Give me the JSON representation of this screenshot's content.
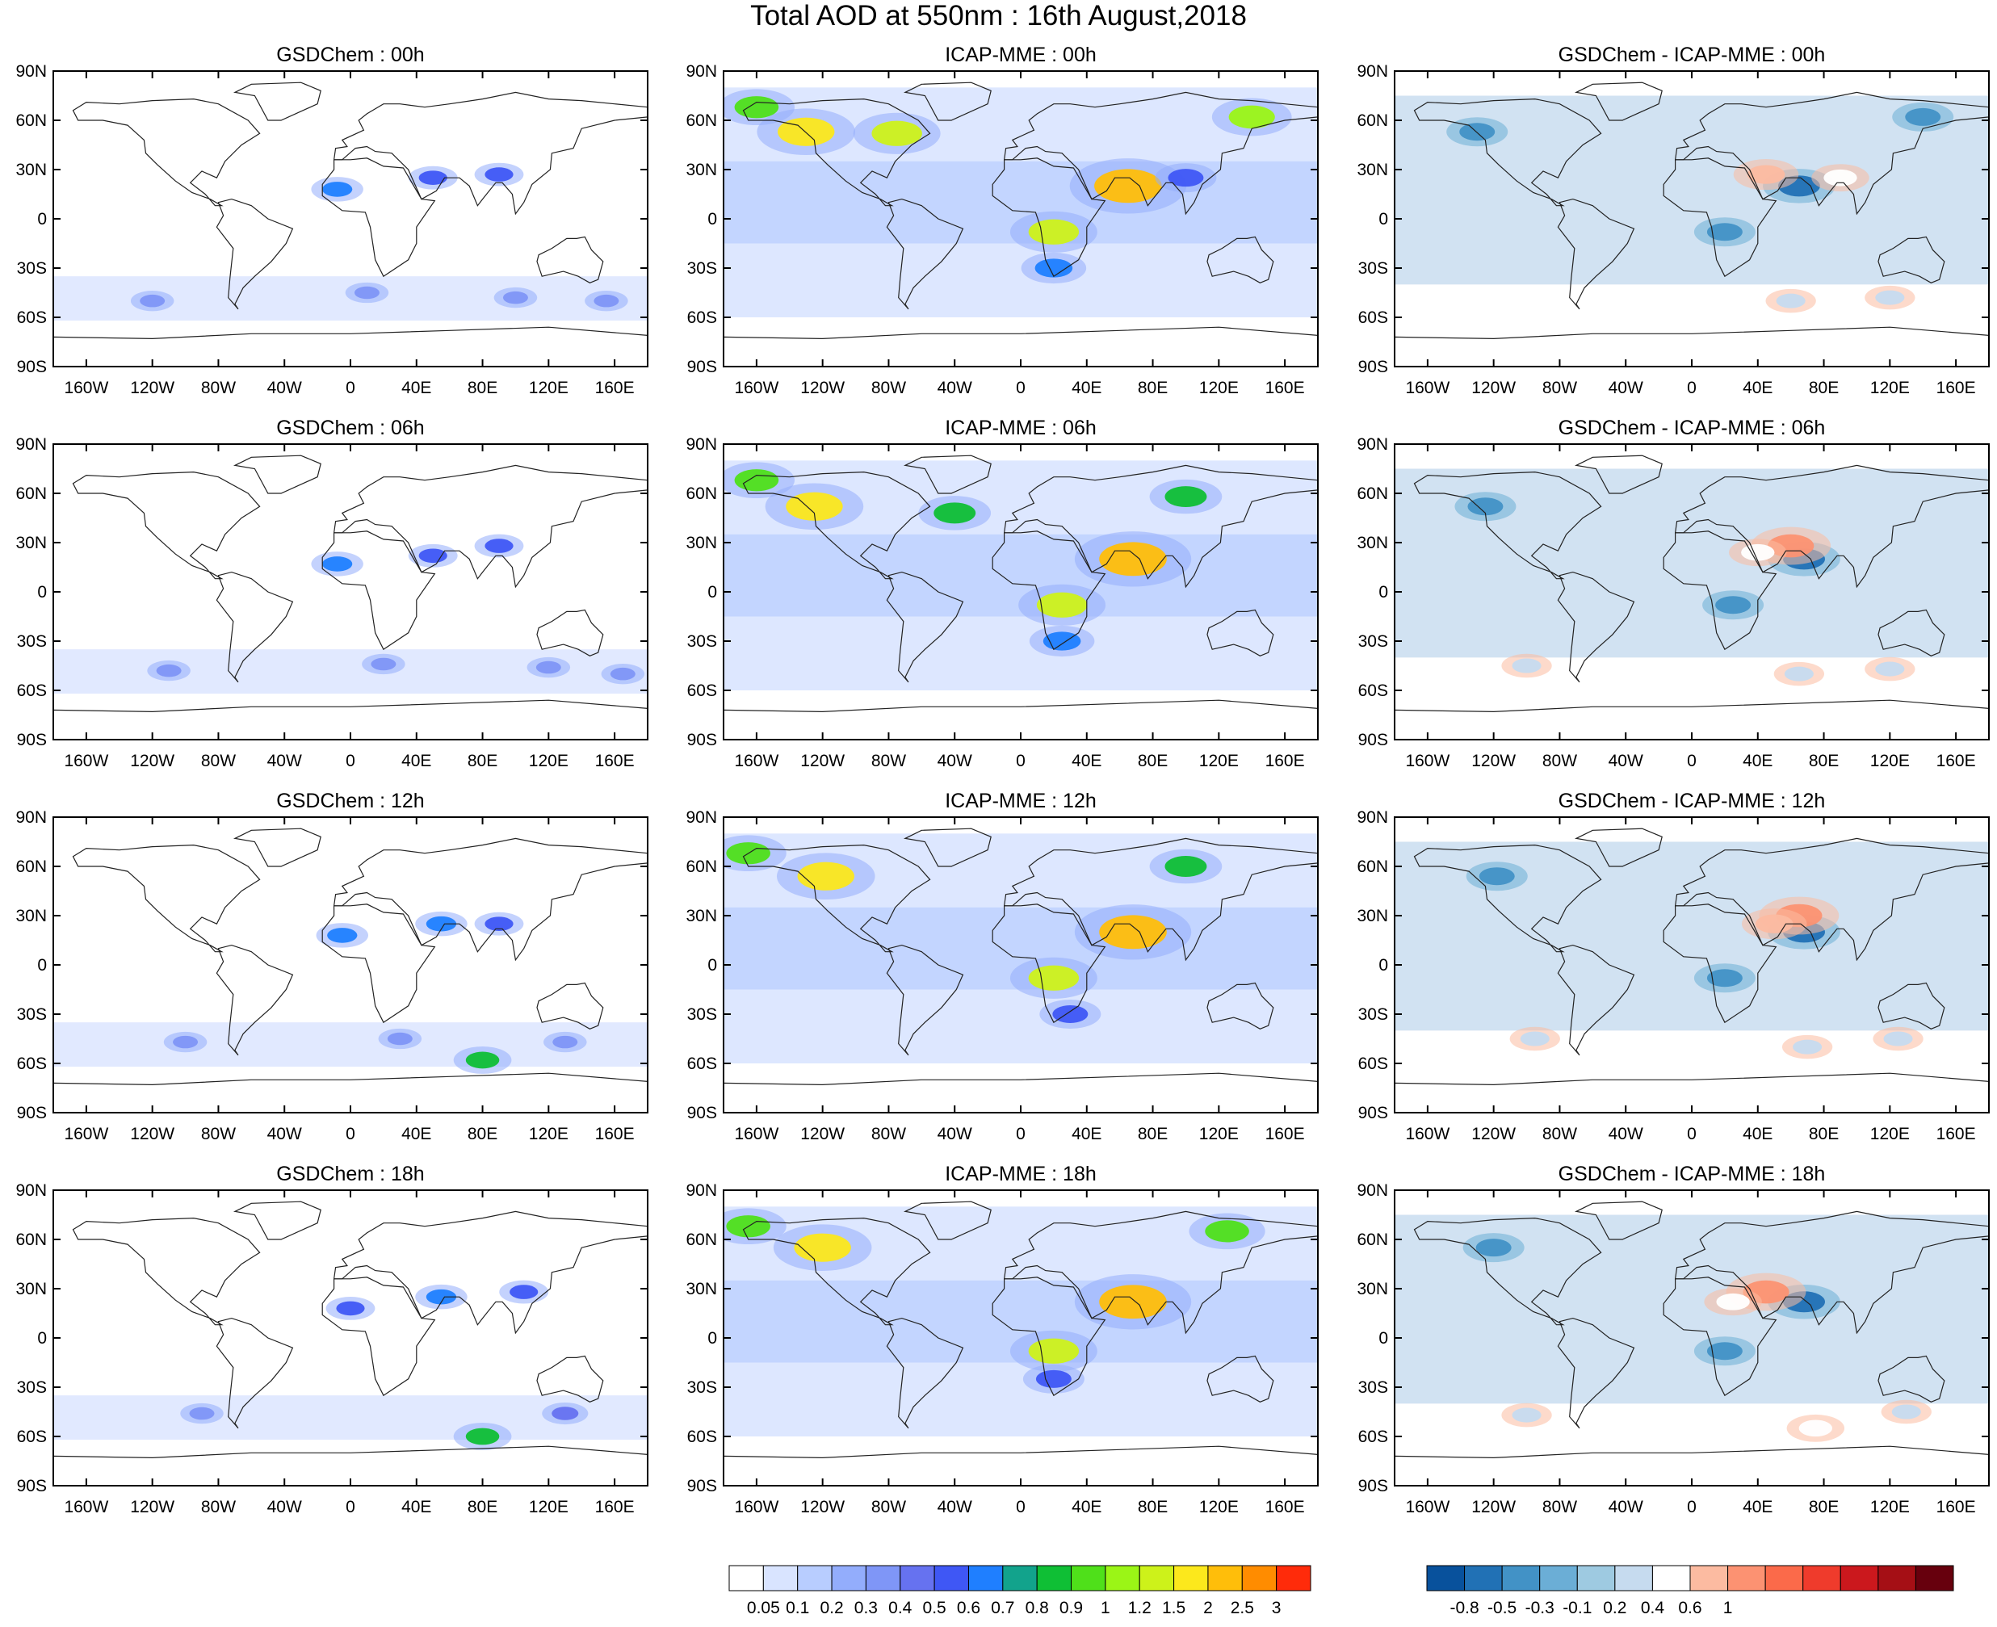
{
  "title": "Total AOD at 550nm : 16th August,2018",
  "lat_ticks": [
    "90N",
    "60N",
    "30N",
    "0",
    "30S",
    "60S",
    "90S"
  ],
  "lon_ticks": [
    "160W",
    "120W",
    "80W",
    "40W",
    "0",
    "40E",
    "80E",
    "120E",
    "160E"
  ],
  "columns": [
    {
      "id": "gsdchem",
      "label": "GSDChem",
      "field": "aod"
    },
    {
      "id": "icap",
      "label": "ICAP-MME",
      "field": "aod"
    },
    {
      "id": "diff",
      "label": "GSDChem - ICAP-MME",
      "field": "diff"
    }
  ],
  "times": [
    "00h",
    "06h",
    "12h",
    "18h"
  ],
  "panels": [
    {
      "title": "GSDChem : 00h"
    },
    {
      "title": "ICAP-MME : 00h"
    },
    {
      "title": "GSDChem - ICAP-MME : 00h"
    },
    {
      "title": "GSDChem : 06h"
    },
    {
      "title": "ICAP-MME : 06h"
    },
    {
      "title": "GSDChem - ICAP-MME : 06h"
    },
    {
      "title": "GSDChem : 12h"
    },
    {
      "title": "ICAP-MME : 12h"
    },
    {
      "title": "GSDChem - ICAP-MME : 12h"
    },
    {
      "title": "GSDChem : 18h"
    },
    {
      "title": "ICAP-MME : 18h"
    },
    {
      "title": "GSDChem - ICAP-MME : 18h"
    }
  ],
  "colorbars": {
    "aod": {
      "labels": [
        "0.05",
        "0.1",
        "0.2",
        "0.3",
        "0.4",
        "0.5",
        "0.6",
        "0.7",
        "0.8",
        "0.9",
        "1",
        "1.2",
        "1.5",
        "2",
        "2.5",
        "3"
      ],
      "colors": [
        "#ffffff",
        "#d9e4ff",
        "#b8cdff",
        "#93adfc",
        "#7f96f7",
        "#6672f0",
        "#3f57f5",
        "#1f7fff",
        "#12a38c",
        "#0fbf35",
        "#4fe01a",
        "#9bf516",
        "#cdf21a",
        "#fce81c",
        "#ffbe0a",
        "#ff8c00",
        "#ff2b0a"
      ]
    },
    "diff": {
      "labels": [
        "-0.8",
        "-0.5",
        "-0.3",
        "-0.1",
        "0.2",
        "0.4",
        "0.6",
        "1"
      ],
      "colors": [
        "#08519c",
        "#2171b5",
        "#4292c6",
        "#6baed6",
        "#9ecae1",
        "#c6dbef",
        "#ffffff",
        "#fcbba1",
        "#fc9272",
        "#fb6a4a",
        "#ef3b2c",
        "#cb181d",
        "#a50f15",
        "#67000d"
      ]
    }
  },
  "chart_data": [
    {
      "type": "heatmap",
      "title": "GSDChem : 00h",
      "field": "AOD",
      "xlim": [
        -180,
        180
      ],
      "ylim": [
        -90,
        90
      ],
      "features": [
        {
          "lon": -8,
          "lat": 18,
          "value": 0.6
        },
        {
          "lon": 50,
          "lat": 25,
          "value": 0.5
        },
        {
          "lon": 90,
          "lat": 27,
          "value": 0.5
        },
        {
          "lon": -120,
          "lat": -50,
          "value": 0.3
        },
        {
          "lon": 10,
          "lat": -45,
          "value": 0.3
        },
        {
          "lon": 100,
          "lat": -48,
          "value": 0.3
        },
        {
          "lon": 155,
          "lat": -50,
          "value": 0.3
        }
      ]
    },
    {
      "type": "heatmap",
      "title": "ICAP-MME : 00h",
      "field": "AOD",
      "xlim": [
        -180,
        180
      ],
      "ylim": [
        -90,
        90
      ],
      "features": [
        {
          "lon": -130,
          "lat": 53,
          "value": 1.5
        },
        {
          "lon": -75,
          "lat": 52,
          "value": 1.2
        },
        {
          "lon": -160,
          "lat": 68,
          "value": 0.9
        },
        {
          "lon": 65,
          "lat": 20,
          "value": 2
        },
        {
          "lon": 20,
          "lat": -8,
          "value": 1.2
        },
        {
          "lon": 140,
          "lat": 62,
          "value": 1
        },
        {
          "lon": 20,
          "lat": -30,
          "value": 0.6
        },
        {
          "lon": 100,
          "lat": 25,
          "value": 0.5
        }
      ]
    },
    {
      "type": "heatmap",
      "title": "GSDChem - ICAP-MME : 00h",
      "field": "difference",
      "xlim": [
        -180,
        180
      ],
      "ylim": [
        -90,
        90
      ],
      "features": [
        {
          "lon": 65,
          "lat": 20,
          "value": -0.8
        },
        {
          "lon": 20,
          "lat": -8,
          "value": -0.5
        },
        {
          "lon": -130,
          "lat": 53,
          "value": -0.5
        },
        {
          "lon": 140,
          "lat": 62,
          "value": -0.5
        },
        {
          "lon": 45,
          "lat": 27,
          "value": 0.6
        },
        {
          "lon": 90,
          "lat": 25,
          "value": 0.4
        },
        {
          "lon": 60,
          "lat": -50,
          "value": 0.2
        },
        {
          "lon": 120,
          "lat": -48,
          "value": 0.2
        }
      ]
    },
    {
      "type": "heatmap",
      "title": "GSDChem : 06h",
      "field": "AOD",
      "xlim": [
        -180,
        180
      ],
      "ylim": [
        -90,
        90
      ],
      "features": [
        {
          "lon": -8,
          "lat": 17,
          "value": 0.6
        },
        {
          "lon": 50,
          "lat": 22,
          "value": 0.5
        },
        {
          "lon": 90,
          "lat": 28,
          "value": 0.5
        },
        {
          "lon": -110,
          "lat": -48,
          "value": 0.3
        },
        {
          "lon": 20,
          "lat": -44,
          "value": 0.3
        },
        {
          "lon": 120,
          "lat": -46,
          "value": 0.3
        },
        {
          "lon": 165,
          "lat": -50,
          "value": 0.3
        }
      ]
    },
    {
      "type": "heatmap",
      "title": "ICAP-MME : 06h",
      "field": "AOD",
      "xlim": [
        -180,
        180
      ],
      "ylim": [
        -90,
        90
      ],
      "features": [
        {
          "lon": -125,
          "lat": 52,
          "value": 1.5
        },
        {
          "lon": -160,
          "lat": 68,
          "value": 0.9
        },
        {
          "lon": -40,
          "lat": 48,
          "value": 0.8
        },
        {
          "lon": 68,
          "lat": 20,
          "value": 2
        },
        {
          "lon": 25,
          "lat": -8,
          "value": 1.2
        },
        {
          "lon": 100,
          "lat": 58,
          "value": 0.8
        },
        {
          "lon": 25,
          "lat": -30,
          "value": 0.6
        }
      ]
    },
    {
      "type": "heatmap",
      "title": "GSDChem - ICAP-MME : 06h",
      "field": "difference",
      "xlim": [
        -180,
        180
      ],
      "ylim": [
        -90,
        90
      ],
      "features": [
        {
          "lon": 68,
          "lat": 20,
          "value": -0.8
        },
        {
          "lon": 25,
          "lat": -8,
          "value": -0.5
        },
        {
          "lon": -125,
          "lat": 52,
          "value": -0.5
        },
        {
          "lon": 60,
          "lat": 28,
          "value": 1
        },
        {
          "lon": 40,
          "lat": 24,
          "value": 0.4
        },
        {
          "lon": 65,
          "lat": -50,
          "value": 0.2
        },
        {
          "lon": 120,
          "lat": -47,
          "value": 0.2
        },
        {
          "lon": -100,
          "lat": -45,
          "value": 0.2
        }
      ]
    },
    {
      "type": "heatmap",
      "title": "GSDChem : 12h",
      "field": "AOD",
      "xlim": [
        -180,
        180
      ],
      "ylim": [
        -90,
        90
      ],
      "features": [
        {
          "lon": -5,
          "lat": 18,
          "value": 0.6
        },
        {
          "lon": 55,
          "lat": 25,
          "value": 0.6
        },
        {
          "lon": 90,
          "lat": 25,
          "value": 0.5
        },
        {
          "lon": -100,
          "lat": -47,
          "value": 0.3
        },
        {
          "lon": 30,
          "lat": -45,
          "value": 0.3
        },
        {
          "lon": 80,
          "lat": -58,
          "value": 0.8
        },
        {
          "lon": 130,
          "lat": -47,
          "value": 0.3
        }
      ]
    },
    {
      "type": "heatmap",
      "title": "ICAP-MME : 12h",
      "field": "AOD",
      "xlim": [
        -180,
        180
      ],
      "ylim": [
        -90,
        90
      ],
      "features": [
        {
          "lon": -118,
          "lat": 54,
          "value": 1.5
        },
        {
          "lon": -165,
          "lat": 68,
          "value": 0.9
        },
        {
          "lon": 68,
          "lat": 20,
          "value": 2
        },
        {
          "lon": 20,
          "lat": -8,
          "value": 1.2
        },
        {
          "lon": 100,
          "lat": 60,
          "value": 0.8
        },
        {
          "lon": 30,
          "lat": -30,
          "value": 0.5
        }
      ]
    },
    {
      "type": "heatmap",
      "title": "GSDChem - ICAP-MME : 12h",
      "field": "difference",
      "xlim": [
        -180,
        180
      ],
      "ylim": [
        -90,
        90
      ],
      "features": [
        {
          "lon": 68,
          "lat": 20,
          "value": -0.8
        },
        {
          "lon": 20,
          "lat": -8,
          "value": -0.5
        },
        {
          "lon": -118,
          "lat": 54,
          "value": -0.5
        },
        {
          "lon": 65,
          "lat": 30,
          "value": 1
        },
        {
          "lon": 50,
          "lat": 25,
          "value": 0.6
        },
        {
          "lon": 70,
          "lat": -50,
          "value": 0.2
        },
        {
          "lon": 125,
          "lat": -45,
          "value": 0.2
        },
        {
          "lon": -95,
          "lat": -45,
          "value": 0.2
        }
      ]
    },
    {
      "type": "heatmap",
      "title": "GSDChem : 18h",
      "field": "AOD",
      "xlim": [
        -180,
        180
      ],
      "ylim": [
        -90,
        90
      ],
      "features": [
        {
          "lon": 0,
          "lat": 18,
          "value": 0.5
        },
        {
          "lon": 55,
          "lat": 25,
          "value": 0.6
        },
        {
          "lon": 105,
          "lat": 28,
          "value": 0.5
        },
        {
          "lon": -90,
          "lat": -46,
          "value": 0.3
        },
        {
          "lon": 80,
          "lat": -60,
          "value": 0.8
        },
        {
          "lon": 130,
          "lat": -46,
          "value": 0.4
        }
      ]
    },
    {
      "type": "heatmap",
      "title": "ICAP-MME : 18h",
      "field": "AOD",
      "xlim": [
        -180,
        180
      ],
      "ylim": [
        -90,
        90
      ],
      "features": [
        {
          "lon": -120,
          "lat": 55,
          "value": 1.5
        },
        {
          "lon": -165,
          "lat": 68,
          "value": 0.9
        },
        {
          "lon": 68,
          "lat": 22,
          "value": 2
        },
        {
          "lon": 20,
          "lat": -8,
          "value": 1.2
        },
        {
          "lon": 125,
          "lat": 65,
          "value": 0.9
        },
        {
          "lon": 20,
          "lat": -25,
          "value": 0.5
        }
      ]
    },
    {
      "type": "heatmap",
      "title": "GSDChem - ICAP-MME : 18h",
      "field": "difference",
      "xlim": [
        -180,
        180
      ],
      "ylim": [
        -90,
        90
      ],
      "features": [
        {
          "lon": 68,
          "lat": 22,
          "value": -0.8
        },
        {
          "lon": 20,
          "lat": -8,
          "value": -0.5
        },
        {
          "lon": -120,
          "lat": 55,
          "value": -0.5
        },
        {
          "lon": 45,
          "lat": 28,
          "value": 1
        },
        {
          "lon": 25,
          "lat": 22,
          "value": 0.4
        },
        {
          "lon": 75,
          "lat": -55,
          "value": 0.4
        },
        {
          "lon": 130,
          "lat": -45,
          "value": 0.2
        },
        {
          "lon": -100,
          "lat": -47,
          "value": 0.2
        }
      ]
    }
  ]
}
